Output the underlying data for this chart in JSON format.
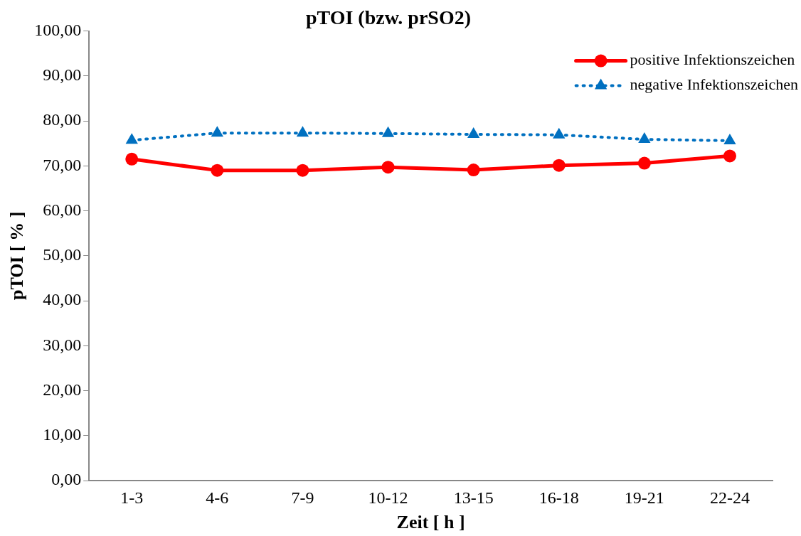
{
  "chart_data": {
    "type": "line",
    "title": "pTOI (bzw. prSO2)",
    "xlabel": "Zeit [ h ]",
    "ylabel": "pTOI [ % ]",
    "categories": [
      "1-3",
      "4-6",
      "7-9",
      "10-12",
      "13-15",
      "16-18",
      "19-21",
      "22-24"
    ],
    "series": [
      {
        "name": "positive Infektionszeichen",
        "color": "#ff0000",
        "marker": "circle",
        "line_style": "solid",
        "values": [
          71.5,
          69.0,
          69.0,
          69.7,
          69.1,
          70.1,
          70.6,
          72.2
        ]
      },
      {
        "name": "negative Infektionszeichen",
        "color": "#0070c0",
        "marker": "triangle",
        "line_style": "dotted",
        "values": [
          75.7,
          77.3,
          77.3,
          77.2,
          77.0,
          76.9,
          75.9,
          75.6
        ]
      }
    ],
    "ylim": [
      0,
      100
    ],
    "yticks": [
      {
        "value": 0,
        "label": "0,00"
      },
      {
        "value": 10,
        "label": "10,00"
      },
      {
        "value": 20,
        "label": "20,00"
      },
      {
        "value": 30,
        "label": "30,00"
      },
      {
        "value": 40,
        "label": "40,00"
      },
      {
        "value": 50,
        "label": "50,00"
      },
      {
        "value": 60,
        "label": "60,00"
      },
      {
        "value": 70,
        "label": "70,00"
      },
      {
        "value": 80,
        "label": "80,00"
      },
      {
        "value": 90,
        "label": "90,00"
      },
      {
        "value": 100,
        "label": "100,00"
      }
    ],
    "grid": false,
    "legend": "top right"
  }
}
